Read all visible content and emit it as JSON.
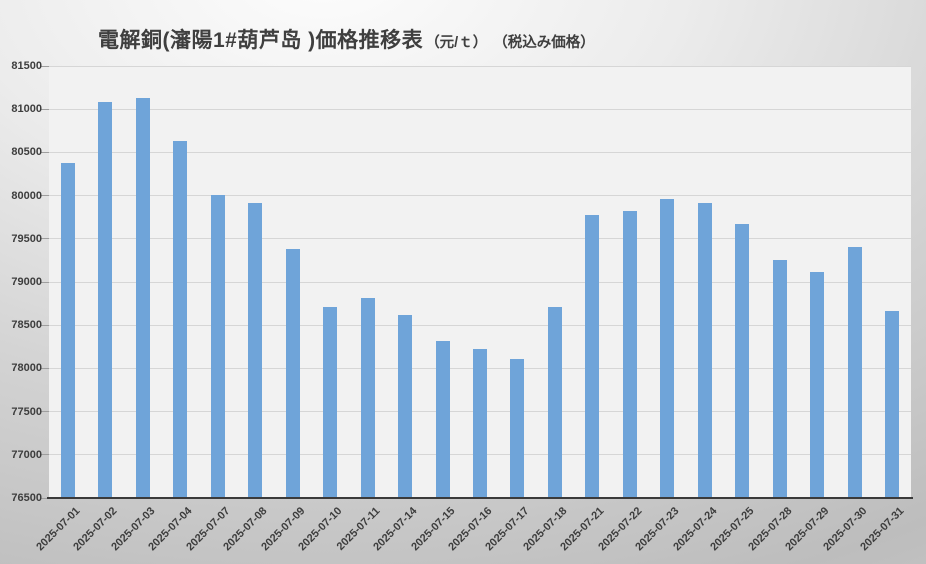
{
  "title": {
    "main": "電解銅(瀋陽1#葫芦岛 )価格推移表",
    "units": "（元/ｔ）",
    "note": "（税込み価格）"
  },
  "chart_data": {
    "type": "bar",
    "title": "電解銅(瀋陽1#葫芦岛 )価格推移表（元/ｔ）（税込み価格）",
    "categories": [
      "2025-07-01",
      "2025-07-02",
      "2025-07-03",
      "2025-07-04",
      "2025-07-07",
      "2025-07-08",
      "2025-07-09",
      "2025-07-10",
      "2025-07-11",
      "2025-07-14",
      "2025-07-15",
      "2025-07-16",
      "2025-07-17",
      "2025-07-18",
      "2025-07-21",
      "2025-07-22",
      "2025-07-23",
      "2025-07-24",
      "2025-07-25",
      "2025-07-28",
      "2025-07-29",
      "2025-07-30",
      "2025-07-31"
    ],
    "values": [
      80380,
      81080,
      81130,
      80630,
      80010,
      79920,
      79380,
      78710,
      78820,
      78620,
      78320,
      78220,
      78110,
      78710,
      79770,
      79820,
      79960,
      79920,
      79670,
      79260,
      79110,
      79410,
      78670
    ],
    "xlabel": "",
    "ylabel": "",
    "ylim": [
      76500,
      81500
    ],
    "y_ticks": [
      81500,
      81000,
      80500,
      80000,
      79500,
      79000,
      78500,
      78000,
      77500,
      77000,
      76500
    ],
    "grid": true,
    "legend": "none",
    "bar_color": "#6FA4D9",
    "plot_bg": "#F2F2F2",
    "grid_color": "#D6D6D6",
    "tick_color": "#9E9E9E",
    "axis_color": "#3A3A3A",
    "text_color": "#3D3D3D"
  }
}
